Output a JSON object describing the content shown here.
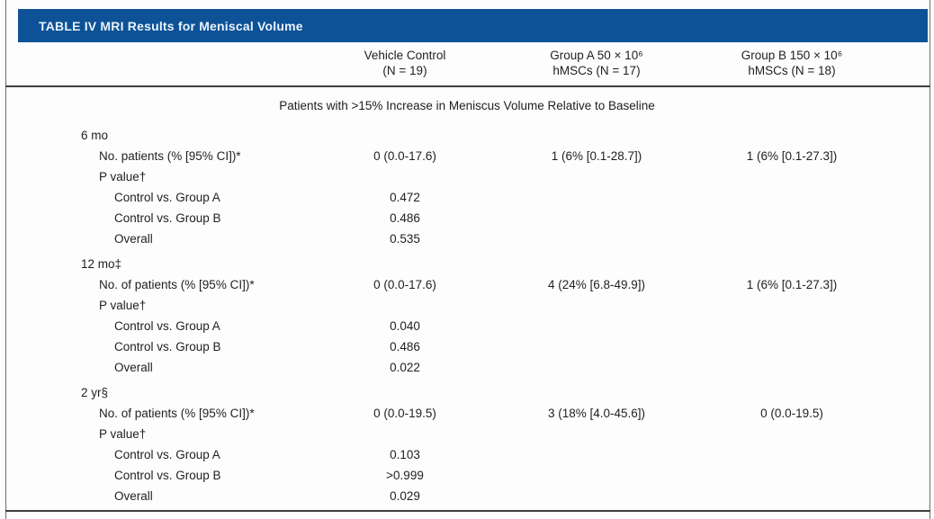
{
  "table": {
    "title": "TABLE IV MRI Results for Meniscal Volume",
    "columns": [
      {
        "line1": "Vehicle Control",
        "line2": "(N = 19)"
      },
      {
        "line1": "Group A 50 × 10⁶",
        "line2": "hMSCs (N = 17)"
      },
      {
        "line1": "Group B 150 × 10⁶",
        "line2": "hMSCs (N = 18)"
      }
    ],
    "section_header": "Patients with >15% Increase in Meniscus Volume Relative to Baseline",
    "rows": [
      {
        "label": "6 mo",
        "indent": 1,
        "values": [
          "",
          "",
          ""
        ]
      },
      {
        "label": "No. patients (% [95% CI])*",
        "indent": 2,
        "values": [
          "0 (0.0-17.6)",
          "1 (6% [0.1-28.7])",
          "1 (6% [0.1-27.3])"
        ]
      },
      {
        "label": "P value†",
        "indent": 2,
        "values": [
          "",
          "",
          ""
        ]
      },
      {
        "label": "Control vs. Group A",
        "indent": 3,
        "values": [
          "0.472",
          "",
          ""
        ]
      },
      {
        "label": "Control vs. Group B",
        "indent": 3,
        "values": [
          "0.486",
          "",
          ""
        ]
      },
      {
        "label": "Overall",
        "indent": 3,
        "values": [
          "0.535",
          "",
          ""
        ]
      },
      {
        "label": "12 mo‡",
        "indent": 1,
        "values": [
          "",
          "",
          ""
        ]
      },
      {
        "label": "No. of patients (% [95% CI])*",
        "indent": 2,
        "values": [
          "0 (0.0-17.6)",
          "4 (24% [6.8-49.9])",
          "1 (6% [0.1-27.3])"
        ]
      },
      {
        "label": "P value†",
        "indent": 2,
        "values": [
          "",
          "",
          ""
        ]
      },
      {
        "label": "Control vs. Group A",
        "indent": 3,
        "values": [
          "0.040",
          "",
          ""
        ]
      },
      {
        "label": "Control vs. Group B",
        "indent": 3,
        "values": [
          "0.486",
          "",
          ""
        ]
      },
      {
        "label": "Overall",
        "indent": 3,
        "values": [
          "0.022",
          "",
          ""
        ]
      },
      {
        "label": "2 yr§",
        "indent": 1,
        "values": [
          "",
          "",
          ""
        ]
      },
      {
        "label": "No. of patients (% [95% CI])*",
        "indent": 2,
        "values": [
          "0 (0.0-19.5)",
          "3 (18% [4.0-45.6])",
          "0 (0.0-19.5)"
        ]
      },
      {
        "label": "P value†",
        "indent": 2,
        "values": [
          "",
          "",
          ""
        ]
      },
      {
        "label": "Control vs. Group A",
        "indent": 3,
        "values": [
          "0.103",
          "",
          ""
        ]
      },
      {
        "label": "Control vs. Group B",
        "indent": 3,
        "values": [
          ">0.999",
          "",
          ""
        ]
      },
      {
        "label": "Overall",
        "indent": 3,
        "values": [
          "0.029",
          "",
          ""
        ]
      }
    ],
    "colors": {
      "header_bg": "#0d5296",
      "header_text": "#e9f2fb",
      "body_text": "#1f1f1f",
      "rule": "#3f3f3f",
      "frame_border": "#6e6e6e"
    }
  }
}
